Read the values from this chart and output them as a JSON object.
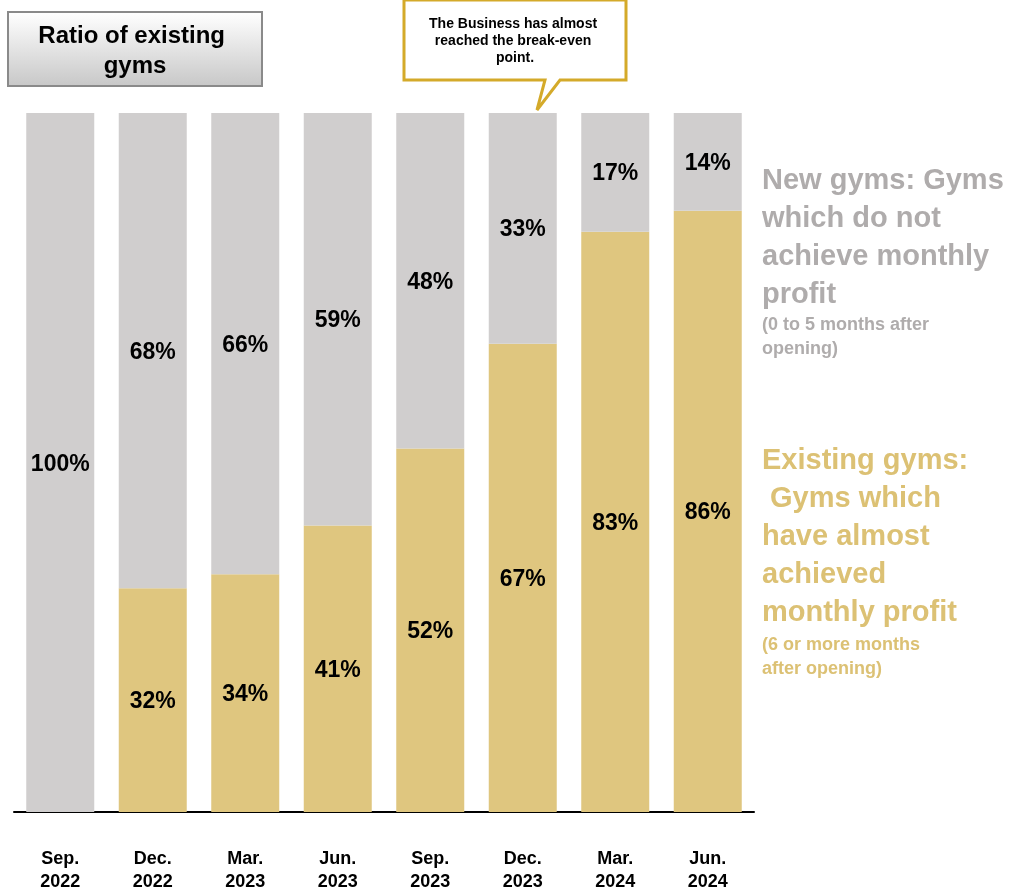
{
  "chart_data": {
    "type": "bar",
    "title": "Ratio of existing gyms",
    "categories": [
      "Sep. 2022",
      "Dec. 2022",
      "Mar. 2023",
      "Jun. 2023",
      "Sep. 2023",
      "Dec. 2023",
      "Mar. 2024",
      "Jun. 2024"
    ],
    "stacked": true,
    "series": [
      {
        "name": "Existing gyms: Gyms which have almost achieved monthly profit",
        "color": "#dfc67f",
        "values": [
          null,
          32,
          34,
          41,
          52,
          67,
          83,
          86
        ],
        "value_labels": [
          null,
          "32%",
          "34%",
          "41%",
          "52%",
          "67%",
          "83%",
          "86%"
        ]
      },
      {
        "name": "New gyms: Gyms which do not achieve monthly profit",
        "color": "#d0cece",
        "values": [
          100,
          68,
          66,
          59,
          48,
          33,
          17,
          14
        ],
        "value_labels": [
          "100%",
          "68%",
          "66%",
          "59%",
          "48%",
          "33%",
          "17%",
          "14%"
        ]
      }
    ],
    "annotations": [
      "The Business has almost reached the break-even point.",
      "(6 or more months after opening)",
      "(0 to 5 months after opening)"
    ],
    "legend": "right"
  }
}
